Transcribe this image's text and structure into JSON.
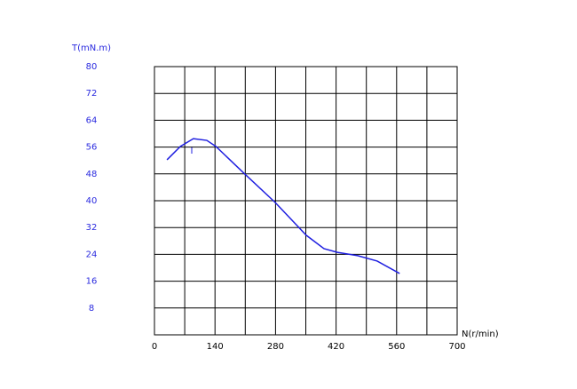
{
  "chart_data": {
    "type": "line",
    "y_label": "T(mN.m)",
    "x_label": "N(r/min)",
    "x": [
      29,
      60,
      90,
      121,
      142,
      207,
      279,
      351,
      392,
      423,
      470,
      515,
      567
    ],
    "series": [
      {
        "color": "#1f1fe0",
        "values": [
          52.2,
          56.2,
          58.5,
          58,
          56.2,
          48.2,
          39.5,
          29.7,
          25.7,
          24.6,
          23.6,
          22,
          18.3
        ]
      }
    ],
    "xlim": [
      0,
      700
    ],
    "xticks": [
      0,
      140,
      280,
      420,
      560,
      700
    ],
    "x_grid": [
      70,
      140,
      210,
      280,
      350,
      420,
      490,
      560,
      630
    ],
    "ylim": [
      0,
      80
    ],
    "yticks": [
      8,
      16,
      24,
      32,
      40,
      48,
      56,
      64,
      72,
      80
    ],
    "grid": true
  }
}
